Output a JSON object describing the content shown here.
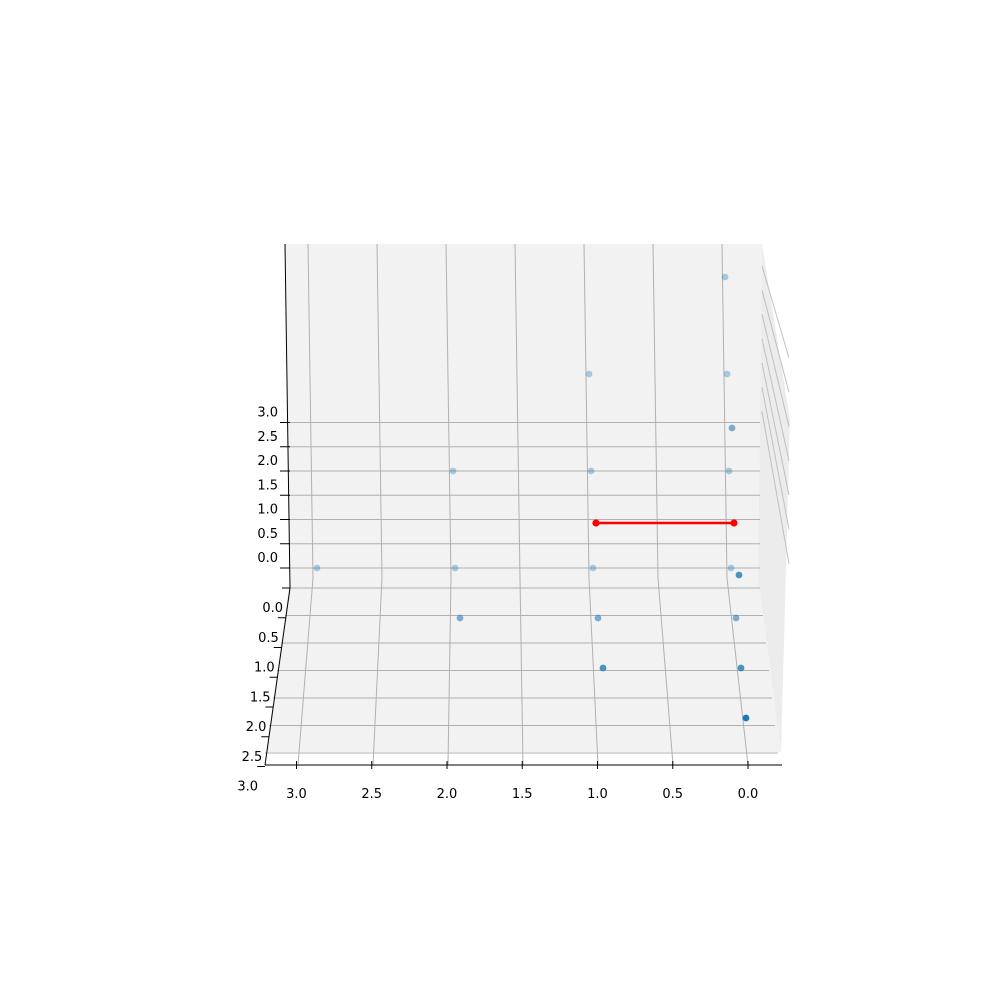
{
  "chart_data": {
    "type": "scatter",
    "projection": "3d",
    "title": "",
    "xlabel": "",
    "ylabel": "",
    "zlabel": "",
    "grid": true,
    "xlim": [
      0,
      3
    ],
    "ylim": [
      0,
      3
    ],
    "zlim": [
      0,
      3
    ],
    "x_ticks": [
      "3.0",
      "2.5",
      "2.0",
      "1.5",
      "1.0",
      "0.5",
      "0.0"
    ],
    "y_ticks": [
      "0.0",
      "0.5",
      "1.0",
      "1.5",
      "2.0",
      "2.5",
      "3.0"
    ],
    "z_ticks": [
      "0.0",
      "0.5",
      "1.0",
      "1.5",
      "2.0",
      "2.5",
      "3.0"
    ],
    "series": [
      {
        "kind": "scatter",
        "color": "#1f77b4",
        "points": [
          {
            "x": 0,
            "y": 0,
            "z": 0
          },
          {
            "x": 1,
            "y": 0,
            "z": 0
          },
          {
            "x": 2,
            "y": 0,
            "z": 0
          },
          {
            "x": 3,
            "y": 0,
            "z": 0
          },
          {
            "x": 0,
            "y": 0,
            "z": 1
          },
          {
            "x": 1,
            "y": 0,
            "z": 1
          },
          {
            "x": 2,
            "y": 0,
            "z": 1
          },
          {
            "x": 0,
            "y": 0,
            "z": 2
          },
          {
            "x": 1,
            "y": 0,
            "z": 2
          },
          {
            "x": 0,
            "y": 0,
            "z": 3
          },
          {
            "x": 0,
            "y": 1,
            "z": 0
          },
          {
            "x": 1,
            "y": 1,
            "z": 0
          },
          {
            "x": 2,
            "y": 1,
            "z": 0
          },
          {
            "x": 0,
            "y": 1,
            "z": 1
          },
          {
            "x": 1,
            "y": 1,
            "z": 1
          },
          {
            "x": 0,
            "y": 1,
            "z": 2
          },
          {
            "x": 0,
            "y": 2,
            "z": 0
          },
          {
            "x": 1,
            "y": 2,
            "z": 0
          },
          {
            "x": 0,
            "y": 2,
            "z": 1
          },
          {
            "x": 0,
            "y": 3,
            "z": 0
          }
        ]
      },
      {
        "kind": "line",
        "color": "#ff0000",
        "points": [
          {
            "x": 1,
            "y": 1,
            "z": 1
          },
          {
            "x": 0,
            "y": 1,
            "z": 1
          }
        ]
      }
    ]
  }
}
